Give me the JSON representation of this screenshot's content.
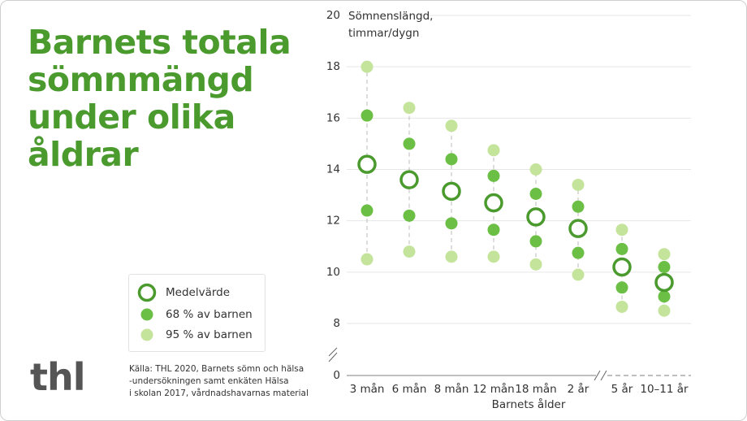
{
  "chart_data": {
    "type": "range-dot",
    "title_lines": [
      "Barnets totala",
      "sömnmängd",
      "under olika",
      "åldrar"
    ],
    "y_label_lines": [
      "Sömnenslängd,",
      "timmar/dygn"
    ],
    "x_label": "Barnets ålder",
    "source_lines": [
      "Källa: THL 2020, Barnets sömn och hälsa",
      "-undersökningen samt enkäten Hälsa",
      "i skolan 2017, vårdnadshavarnas material"
    ],
    "categories": [
      "3 mån",
      "6 mån",
      "8 mån",
      "12 mån",
      "18 mån",
      "2 år",
      "5 år",
      "10–11 år"
    ],
    "ylim": [
      0,
      20
    ],
    "yticks": [
      0,
      8,
      10,
      12,
      14,
      16,
      18,
      20
    ],
    "y_axis_break": [
      0,
      8
    ],
    "grid": true,
    "series": [
      {
        "name": "Medelvärde",
        "color": "#4a9a2e",
        "values": [
          14.2,
          13.6,
          13.15,
          12.7,
          12.15,
          11.7,
          10.2,
          9.6
        ]
      },
      {
        "name": "68 % av barnen",
        "color": "#6cbf45",
        "low": [
          12.4,
          12.2,
          11.9,
          11.65,
          11.2,
          10.75,
          9.4,
          9.05
        ],
        "high": [
          16.1,
          15.0,
          14.4,
          13.75,
          13.05,
          12.55,
          10.9,
          10.2
        ]
      },
      {
        "name": "95 % av barnen",
        "color": "#c4e49c",
        "low": [
          10.5,
          10.8,
          10.6,
          10.6,
          10.3,
          9.9,
          8.65,
          8.5
        ],
        "high": [
          18.0,
          16.4,
          15.7,
          14.75,
          14.0,
          13.4,
          11.65,
          10.7
        ]
      }
    ]
  },
  "logo": "thl"
}
